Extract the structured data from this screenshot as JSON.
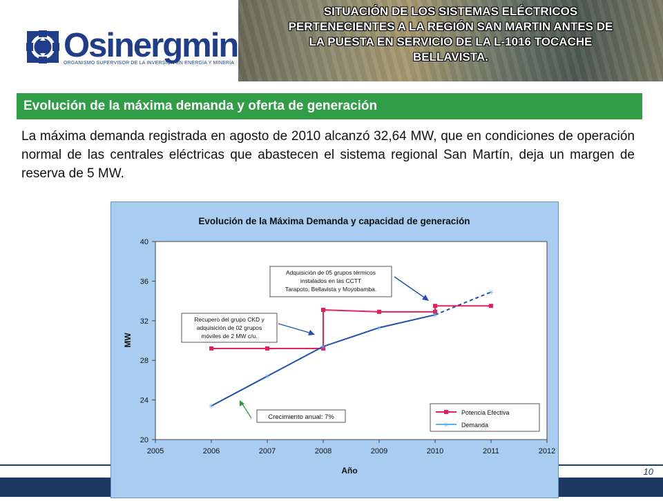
{
  "header": {
    "logo_name": "Osinergmin",
    "logo_subtitle": "ORGANISMO SUPERVISOR DE LA INVERSIÓN EN ENERGÍA Y MINERÍA",
    "banner_title_lines": [
      "SITUACIÓN DE LOS SISTEMAS ELÉCTRICOS",
      "PERTENECIENTES A LA REGIÓN SAN MARTIN ANTES DE",
      "LA PUESTA EN SERVICIO DE LA L-1016 TOCACHE",
      "BELLAVISTA."
    ]
  },
  "section": {
    "title": "Evolución de la máxima demanda y oferta de generación",
    "paragraph": "La máxima demanda registrada en agosto de 2010 alcanzó 32,64 MW, que en condiciones de operación normal de las centrales eléctricas que abastecen el sistema regional San Martín, deja un margen de reserva de 5 MW."
  },
  "footer": {
    "page_number": "10"
  },
  "colors": {
    "section_green": "#2f9e46",
    "navy": "#1e3a63",
    "potencia": "#e8205a",
    "demanda": "#1f4fb0"
  },
  "chart_data": {
    "type": "line",
    "title": "Evolución de la Máxima Demanda y capacidad de generación",
    "xlabel": "Año",
    "ylabel": "MW",
    "xlim": [
      2005,
      2012
    ],
    "ylim": [
      20,
      40
    ],
    "xticks": [
      "2005",
      "2006",
      "2007",
      "2008",
      "2009",
      "2010",
      "2011",
      "2012"
    ],
    "yticks": [
      "20",
      "24",
      "28",
      "32",
      "36",
      "40"
    ],
    "grid": false,
    "legend_position": "bottom-right",
    "series": [
      {
        "name": "Potencia Efectiva",
        "style": "step",
        "x": [
          2006,
          2007,
          2008,
          2008,
          2009,
          2010,
          2010,
          2011
        ],
        "y": [
          29.2,
          29.2,
          29.2,
          33.1,
          32.9,
          32.9,
          33.5,
          33.5
        ]
      },
      {
        "name": "Demanda",
        "x": [
          2006,
          2007,
          2008,
          2009,
          2010,
          2011
        ],
        "y": [
          23.4,
          26.4,
          29.4,
          31.3,
          32.6,
          34.9
        ],
        "dashed_from_x": 2010
      }
    ],
    "annotations": [
      {
        "text": [
          "Adquisición de 05 grupos térmicos",
          "instalados en las CCTT",
          "Tarapoto, Bellavista y Moyobamba."
        ]
      },
      {
        "text": [
          "Recupero del grupo CKD y",
          "adquisición de 02 grupos",
          "móviles de 2 MW c/u."
        ]
      },
      {
        "text": [
          "Crecimiento anual: 7%"
        ]
      }
    ]
  }
}
